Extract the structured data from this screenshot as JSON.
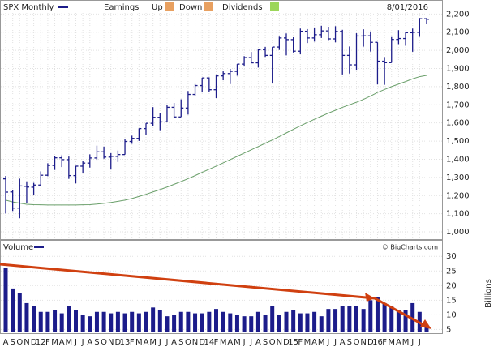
{
  "chart_data": [
    {
      "type": "ohlc",
      "title": "SPX Monthly",
      "legend_items": [
        "Earnings",
        "Up",
        "Down",
        "Dividends"
      ],
      "date": "8/01/2016",
      "color": "#1c1c8a",
      "average_color": "#6a9f6a",
      "grid": true,
      "categories": [
        "A",
        "S",
        "O",
        "N",
        "D",
        "12",
        "F",
        "M",
        "A",
        "M",
        "J",
        "J",
        "A",
        "S",
        "O",
        "N",
        "D",
        "13",
        "F",
        "M",
        "A",
        "M",
        "J",
        "J",
        "A",
        "S",
        "O",
        "N",
        "D",
        "14",
        "F",
        "M",
        "A",
        "M",
        "J",
        "J",
        "A",
        "S",
        "O",
        "N",
        "D",
        "15",
        "F",
        "M",
        "A",
        "M",
        "J",
        "J",
        "A",
        "S",
        "O",
        "N",
        "D",
        "16",
        "F",
        "M",
        "A",
        "M",
        "J",
        "J",
        null
      ],
      "open": [
        1292,
        1220,
        1131,
        1251,
        1246,
        1258,
        1312,
        1366,
        1408,
        1398,
        1310,
        1362,
        1379,
        1407,
        1441,
        1412,
        1416,
        1426,
        1498,
        1515,
        1569,
        1598,
        1631,
        1606,
        1686,
        1633,
        1682,
        1757,
        1806,
        1848,
        1783,
        1859,
        1872,
        1884,
        1924,
        1960,
        1931,
        2003,
        1972,
        2018,
        2068,
        2059,
        1995,
        2105,
        2068,
        2086,
        2107,
        2063,
        2104,
        1972,
        1920,
        2079,
        2080,
        2044,
        1940,
        1932,
        2060,
        2065,
        2097,
        2099,
        2174
      ],
      "high": [
        1308,
        1230,
        1293,
        1278,
        1270,
        1333,
        1378,
        1420,
        1422,
        1415,
        1364,
        1392,
        1427,
        1475,
        1470,
        1434,
        1448,
        1510,
        1530,
        1570,
        1598,
        1687,
        1654,
        1698,
        1710,
        1730,
        1776,
        1814,
        1849,
        1851,
        1867,
        1884,
        1898,
        1924,
        1968,
        1991,
        2005,
        2019,
        2018,
        2075,
        2093,
        2072,
        2120,
        2117,
        2126,
        2135,
        2130,
        2133,
        2113,
        2021,
        2094,
        2116,
        2104,
        2044,
        1963,
        2073,
        2111,
        2103,
        2120,
        2178,
        2178
      ],
      "low": [
        1101,
        1115,
        1075,
        1159,
        1203,
        1258,
        1307,
        1341,
        1357,
        1292,
        1267,
        1325,
        1354,
        1397,
        1403,
        1343,
        1385,
        1426,
        1485,
        1501,
        1536,
        1581,
        1560,
        1605,
        1627,
        1633,
        1646,
        1747,
        1768,
        1771,
        1737,
        1835,
        1814,
        1860,
        1915,
        1930,
        1905,
        1964,
        1821,
        2002,
        1972,
        1988,
        1981,
        2040,
        2048,
        2068,
        2056,
        2044,
        1867,
        1872,
        1893,
        2020,
        1993,
        1812,
        1810,
        1932,
        2034,
        2025,
        1992,
        2074,
        2147
      ],
      "close": [
        1219,
        1131,
        1253,
        1247,
        1258,
        1312,
        1366,
        1408,
        1398,
        1310,
        1362,
        1379,
        1407,
        1441,
        1412,
        1416,
        1426,
        1498,
        1515,
        1569,
        1598,
        1631,
        1606,
        1686,
        1633,
        1682,
        1757,
        1806,
        1848,
        1783,
        1859,
        1872,
        1884,
        1924,
        1960,
        1931,
        2003,
        1972,
        2018,
        2068,
        2059,
        1995,
        2105,
        2068,
        2086,
        2107,
        2063,
        2104,
        1972,
        1920,
        2079,
        2080,
        2044,
        1940,
        1932,
        2060,
        2065,
        2097,
        2099,
        2174,
        2171
      ],
      "moving_average": [
        1175,
        1165,
        1158,
        1152,
        1150,
        1149,
        1148,
        1148,
        1148,
        1148,
        1148,
        1149,
        1150,
        1153,
        1157,
        1162,
        1168,
        1175,
        1184,
        1195,
        1207,
        1220,
        1233,
        1247,
        1262,
        1277,
        1293,
        1310,
        1328,
        1345,
        1362,
        1380,
        1398,
        1416,
        1434,
        1452,
        1470,
        1488,
        1506,
        1525,
        1545,
        1565,
        1584,
        1602,
        1620,
        1637,
        1654,
        1670,
        1686,
        1700,
        1714,
        1730,
        1748,
        1768,
        1784,
        1800,
        1814,
        1828,
        1843,
        1855,
        1862
      ],
      "ylim": [
        960,
        2255
      ],
      "yticks": [
        {
          "value": 1000,
          "label": "1,000"
        },
        {
          "value": 1100,
          "label": "1,100"
        },
        {
          "value": 1200,
          "label": "1,200"
        },
        {
          "value": 1300,
          "label": "1,300"
        },
        {
          "value": 1400,
          "label": "1,400"
        },
        {
          "value": 1500,
          "label": "1,500"
        },
        {
          "value": 1600,
          "label": "1,600"
        },
        {
          "value": 1700,
          "label": "1,700"
        },
        {
          "value": 1800,
          "label": "1,800"
        },
        {
          "value": 1900,
          "label": "1,900"
        },
        {
          "value": 2000,
          "label": "2,000"
        },
        {
          "value": 2100,
          "label": "2,100"
        },
        {
          "value": 2200,
          "label": "2,200"
        }
      ]
    },
    {
      "type": "bar",
      "title": "Volume",
      "source": "© BigCharts.com",
      "y_label": "Billions",
      "color": "#1c1c8a",
      "grid": true,
      "values": [
        26,
        19,
        17.5,
        14,
        13,
        11,
        11,
        11.5,
        10.5,
        13,
        11.5,
        10,
        9.5,
        11,
        11,
        10.5,
        11,
        10.5,
        11,
        10.5,
        11,
        12.5,
        11.5,
        9.5,
        10,
        11,
        11,
        10.5,
        10.5,
        11,
        12,
        11,
        10.5,
        10,
        9.5,
        9.5,
        11,
        10,
        13,
        10,
        11,
        11.5,
        10.5,
        10.5,
        11,
        9.5,
        12,
        12,
        13,
        13,
        13,
        12,
        15,
        16,
        14,
        13,
        11.5,
        11.5,
        14,
        11,
        6
      ],
      "ylim": [
        4,
        34.5
      ],
      "yticks": [
        5,
        10,
        15,
        20,
        25,
        30
      ]
    }
  ]
}
